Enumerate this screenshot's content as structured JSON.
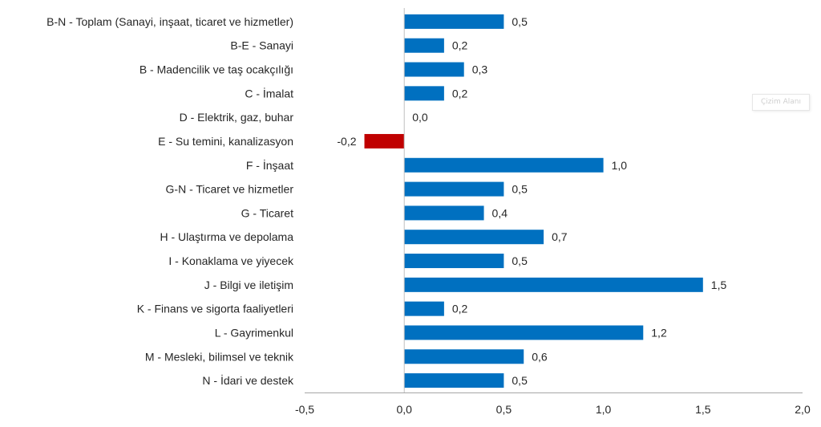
{
  "chart_data": {
    "type": "bar",
    "orientation": "horizontal",
    "title": "",
    "xlabel": "",
    "ylabel": "",
    "xlim": [
      -0.5,
      2.0
    ],
    "xticks": [
      -0.5,
      0.0,
      0.5,
      1.0,
      1.5,
      2.0
    ],
    "xtick_labels": [
      "-0,5",
      "0,0",
      "0,5",
      "1,0",
      "1,5",
      "2,0"
    ],
    "grid": false,
    "legend": "none",
    "colors": {
      "positive": "#0070C0",
      "negative": "#C00000"
    },
    "categories": [
      "B-N - Toplam (Sanayi, inşaat, ticaret ve hizmetler)",
      "B-E - Sanayi",
      "B - Madencilik ve taş ocakçılığı",
      "C - İmalat",
      "D - Elektrik, gaz, buhar",
      "E - Su temini, kanalizasyon",
      "F - İnşaat",
      "G-N - Ticaret ve hizmetler",
      "G - Ticaret",
      "H - Ulaştırma ve depolama",
      "I - Konaklama ve yiyecek",
      "J - Bilgi ve iletişim",
      "K - Finans ve sigorta faaliyetleri",
      "L - Gayrimenkul",
      "M - Mesleki, bilimsel ve teknik",
      "N - İdari ve destek"
    ],
    "values": [
      0.5,
      0.2,
      0.3,
      0.2,
      0.0,
      -0.2,
      1.0,
      0.5,
      0.4,
      0.7,
      0.5,
      1.5,
      0.2,
      1.2,
      0.6,
      0.5
    ],
    "value_labels": [
      "0,5",
      "0,2",
      "0,3",
      "0,2",
      "0,0",
      "-0,2",
      "1,0",
      "0,5",
      "0,4",
      "0,7",
      "0,5",
      "1,5",
      "0,2",
      "1,2",
      "0,6",
      "0,5"
    ]
  },
  "tooltip": {
    "text": "Çizim Alanı"
  }
}
